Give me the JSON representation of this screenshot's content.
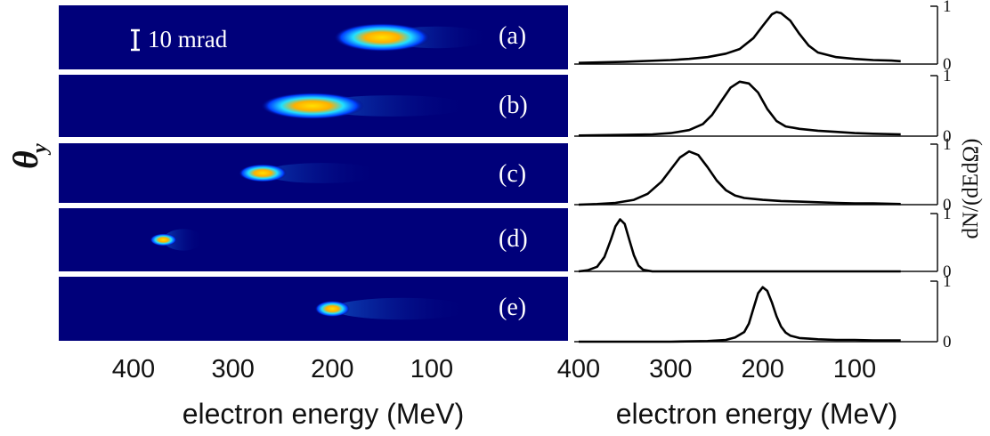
{
  "chart_data": [
    {
      "type": "heatmap",
      "description_ref": "left",
      "panels": [
        {
          "label": "(a)",
          "peak_energy": 150,
          "intensity": 1.0,
          "tail_to": 40
        },
        {
          "label": "(b)",
          "peak_energy": 220,
          "intensity": 1.0,
          "tail_to": 60
        },
        {
          "label": "(c)",
          "peak_energy": 270,
          "intensity": 0.7,
          "tail_to": 150
        },
        {
          "label": "(d)",
          "peak_energy": 370,
          "intensity": 0.75,
          "tail_to": 330
        },
        {
          "label": "(e)",
          "peak_energy": 200,
          "intensity": 0.85,
          "tail_to": 60
        }
      ],
      "scale_bar_label": "10 mrad",
      "ylabel_main": "θ",
      "ylabel_sub": "y",
      "xlabel": "electron energy (MeV)",
      "xticks": [
        400,
        300,
        200,
        100
      ],
      "xlim": [
        460,
        0
      ]
    },
    {
      "type": "line",
      "description_ref": "right",
      "xlabel": "electron energy (MeV)",
      "ylabel": "dN/(dEdΩ)",
      "xticks": [
        400,
        300,
        200,
        100
      ],
      "yticks": [
        0,
        1
      ],
      "xlim": [
        400,
        50
      ],
      "ylim": [
        0,
        1
      ],
      "series": [
        {
          "x": [
            400,
            350,
            300,
            280,
            260,
            240,
            225,
            210,
            200,
            190,
            185,
            180,
            170,
            160,
            150,
            140,
            120,
            100,
            80,
            60,
            50
          ],
          "y": [
            0.02,
            0.04,
            0.07,
            0.09,
            0.12,
            0.18,
            0.26,
            0.45,
            0.66,
            0.86,
            0.9,
            0.88,
            0.75,
            0.52,
            0.32,
            0.2,
            0.12,
            0.09,
            0.07,
            0.06,
            0.05
          ]
        },
        {
          "x": [
            400,
            350,
            320,
            300,
            280,
            265,
            255,
            245,
            235,
            225,
            215,
            205,
            195,
            185,
            175,
            160,
            140,
            120,
            100,
            80,
            50
          ],
          "y": [
            0.01,
            0.02,
            0.03,
            0.05,
            0.1,
            0.2,
            0.35,
            0.58,
            0.8,
            0.9,
            0.87,
            0.72,
            0.45,
            0.25,
            0.16,
            0.12,
            0.09,
            0.07,
            0.05,
            0.04,
            0.03
          ]
        },
        {
          "x": [
            400,
            380,
            360,
            340,
            325,
            310,
            300,
            290,
            280,
            270,
            260,
            250,
            240,
            230,
            220,
            200,
            180,
            160,
            140,
            120,
            100,
            80,
            50
          ],
          "y": [
            0.0,
            0.01,
            0.03,
            0.08,
            0.18,
            0.38,
            0.58,
            0.78,
            0.88,
            0.82,
            0.62,
            0.4,
            0.24,
            0.15,
            0.11,
            0.08,
            0.06,
            0.05,
            0.04,
            0.03,
            0.02,
            0.02,
            0.01
          ]
        },
        {
          "x": [
            400,
            390,
            380,
            372,
            365,
            360,
            355,
            350,
            345,
            340,
            335,
            330,
            320,
            300,
            250,
            200,
            150,
            100,
            50
          ],
          "y": [
            0.0,
            0.02,
            0.08,
            0.25,
            0.55,
            0.78,
            0.9,
            0.82,
            0.55,
            0.28,
            0.1,
            0.03,
            0.0,
            0.0,
            0.0,
            0.0,
            0.0,
            0.0,
            0.0
          ]
        },
        {
          "x": [
            400,
            300,
            260,
            240,
            230,
            220,
            215,
            210,
            205,
            200,
            195,
            190,
            185,
            180,
            175,
            170,
            160,
            150,
            140,
            120,
            100,
            80,
            50
          ],
          "y": [
            0.0,
            0.0,
            0.01,
            0.03,
            0.07,
            0.16,
            0.3,
            0.55,
            0.8,
            0.9,
            0.84,
            0.65,
            0.42,
            0.25,
            0.15,
            0.1,
            0.06,
            0.05,
            0.04,
            0.03,
            0.03,
            0.02,
            0.02
          ]
        }
      ]
    }
  ]
}
